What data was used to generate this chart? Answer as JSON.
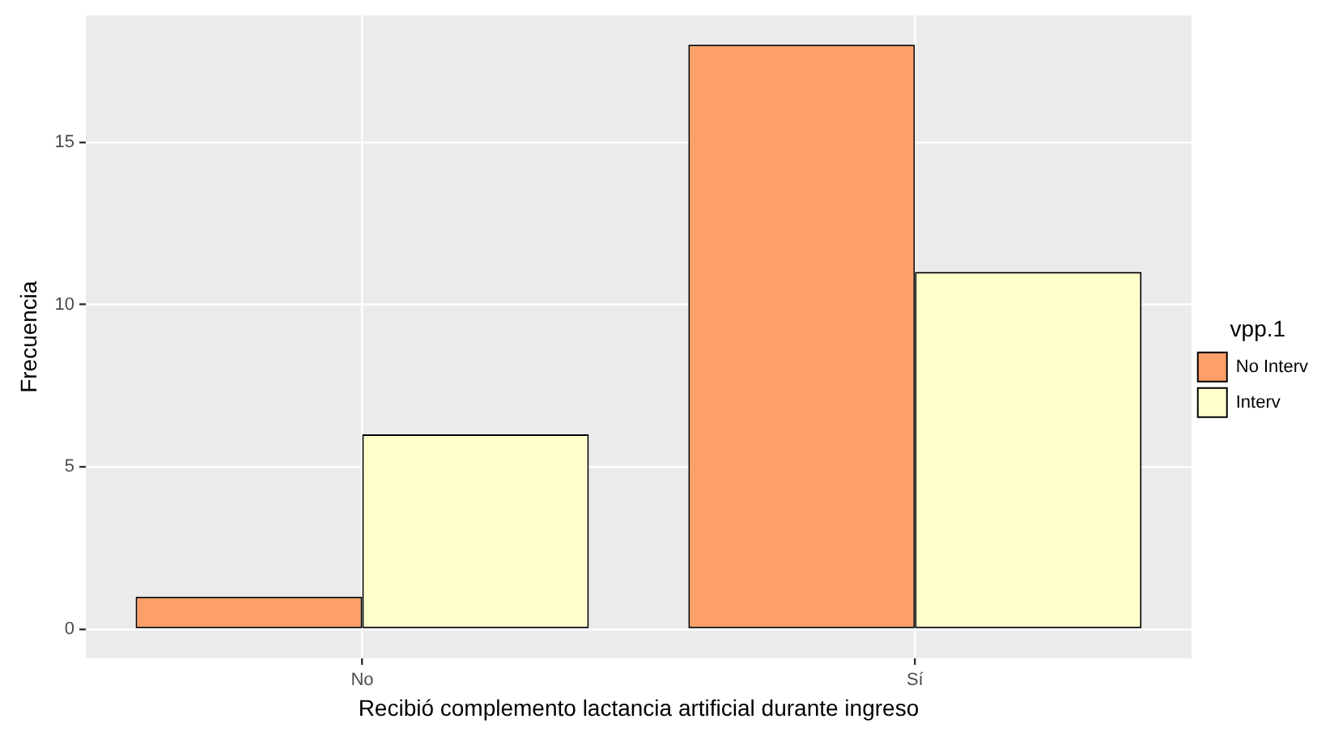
{
  "chart_data": {
    "type": "bar",
    "xlabel": "Recibió complemento lactancia artificial durante ingreso",
    "ylabel": "Frecuencia",
    "legend_title": "vpp.1",
    "categories": [
      "No",
      "Sí"
    ],
    "series": [
      {
        "name": "No Interv",
        "color": "#fc9f68",
        "values": [
          1,
          18
        ]
      },
      {
        "name": "Interv",
        "color": "#ffffcc",
        "values": [
          6,
          11
        ]
      }
    ],
    "ylim": [
      -0.9,
      18.9
    ],
    "yticks": [
      0,
      5,
      10,
      15
    ],
    "grid": true,
    "legend": "right"
  }
}
